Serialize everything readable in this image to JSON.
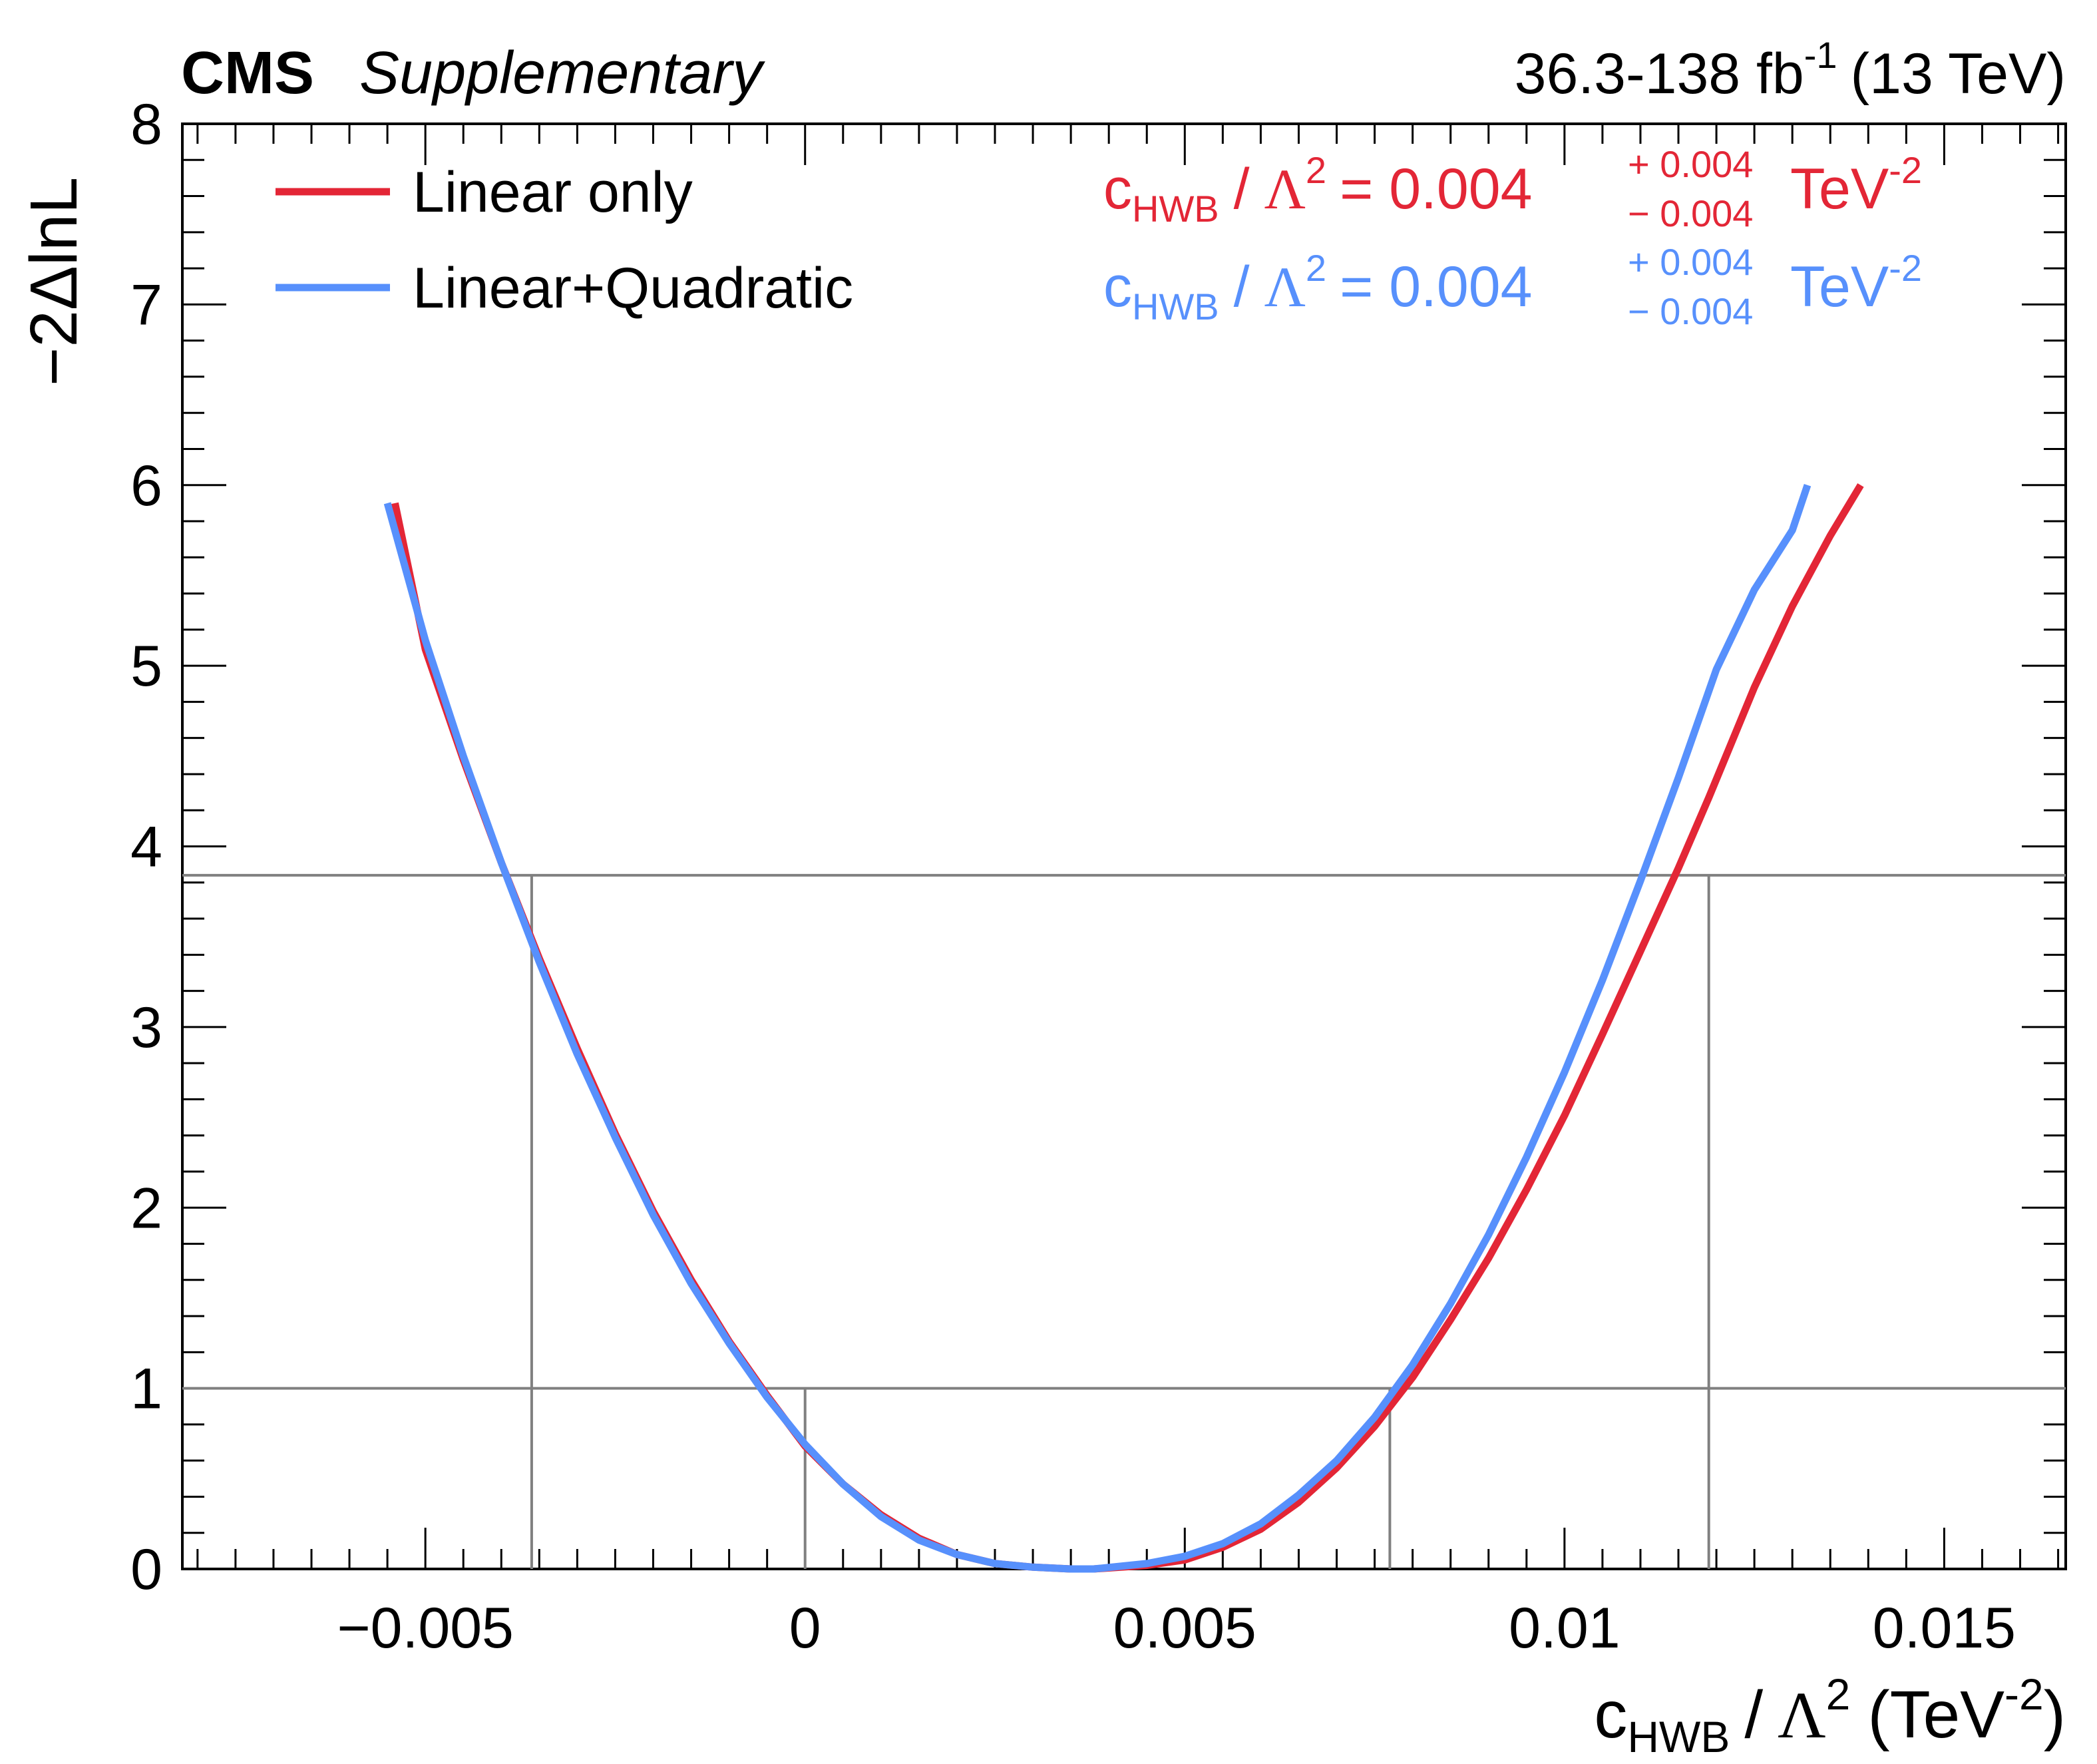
{
  "header": {
    "experiment": "CMS",
    "status": "Supplementary",
    "lumi_text": "36.3-138 fb",
    "lumi_exp": "-1",
    "energy_text": "(13 TeV)"
  },
  "colors": {
    "linear": "#e32636",
    "quadratic": "#5790fc",
    "reference_lines": "#808080"
  },
  "chart_data": {
    "type": "line",
    "xlabel": {
      "c": "c",
      "sub": "HWB",
      "slash": "/",
      "lambda": "Λ",
      "exp": "2",
      "unit_open": "(TeV",
      "unit_exp": "-2",
      "unit_close": ")"
    },
    "ylabel": "−2ΔlnL",
    "xlim": [
      -0.0082,
      0.0166
    ],
    "ylim": [
      0,
      8
    ],
    "xticks": [
      -0.005,
      0,
      0.005,
      0.01,
      0.015
    ],
    "xtick_labels": [
      "−0.005",
      "0",
      "0.005",
      "0.01",
      "0.015"
    ],
    "yticks": [
      0,
      1,
      2,
      3,
      4,
      5,
      6,
      7,
      8
    ],
    "ytick_labels": [
      "0",
      "1",
      "2",
      "3",
      "4",
      "5",
      "6",
      "7",
      "8"
    ],
    "grid": false,
    "legend_position": "top-left",
    "series": [
      {
        "name": "Linear only",
        "color": "#e32636",
        "x": [
          -0.0054,
          -0.005,
          -0.0045,
          -0.004,
          -0.0035,
          -0.003,
          -0.0025,
          -0.002,
          -0.0015,
          -0.001,
          -0.0005,
          0,
          0.0005,
          0.001,
          0.0015,
          0.002,
          0.0025,
          0.003,
          0.0035,
          0.0038,
          0.0045,
          0.005,
          0.0055,
          0.006,
          0.0065,
          0.007,
          0.0075,
          0.008,
          0.0085,
          0.009,
          0.0095,
          0.01,
          0.0105,
          0.011,
          0.0115,
          0.0119,
          0.0125,
          0.013,
          0.0135,
          0.0139
        ],
        "y": [
          5.9,
          5.09,
          4.48,
          3.91,
          3.38,
          2.88,
          2.41,
          1.98,
          1.6,
          1.26,
          0.96,
          0.68,
          0.47,
          0.3,
          0.17,
          0.08,
          0.03,
          0.01,
          0.0,
          0.0,
          0.02,
          0.05,
          0.12,
          0.22,
          0.37,
          0.56,
          0.79,
          1.06,
          1.38,
          1.72,
          2.1,
          2.51,
          2.96,
          3.42,
          3.88,
          4.27,
          4.88,
          5.33,
          5.72,
          6.0
        ]
      },
      {
        "name": "Linear+Quadratic",
        "color": "#5790fc",
        "x": [
          -0.0055,
          -0.005,
          -0.0045,
          -0.004,
          -0.0035,
          -0.003,
          -0.0025,
          -0.002,
          -0.0015,
          -0.001,
          -0.0005,
          0,
          0.0005,
          0.001,
          0.0015,
          0.002,
          0.0025,
          0.003,
          0.0035,
          0.0038,
          0.0045,
          0.005,
          0.0055,
          0.006,
          0.0065,
          0.007,
          0.0075,
          0.008,
          0.0085,
          0.009,
          0.0095,
          0.01,
          0.0105,
          0.011,
          0.0115,
          0.012,
          0.0125,
          0.013,
          0.0132
        ],
        "y": [
          5.9,
          5.14,
          4.5,
          3.91,
          3.36,
          2.85,
          2.39,
          1.96,
          1.58,
          1.25,
          0.95,
          0.69,
          0.47,
          0.29,
          0.16,
          0.08,
          0.03,
          0.01,
          0.0,
          0.0,
          0.03,
          0.07,
          0.14,
          0.25,
          0.41,
          0.6,
          0.84,
          1.13,
          1.47,
          1.85,
          2.28,
          2.75,
          3.26,
          3.81,
          4.38,
          4.98,
          5.42,
          5.75,
          6.0
        ]
      }
    ],
    "reference_lines": {
      "horizontal_y": [
        1,
        3.84
      ],
      "vertical": [
        {
          "x": -0.0036,
          "y_top": 3.84
        },
        {
          "x": 0.0,
          "y_top": 1
        },
        {
          "x": 0.0077,
          "y_top": 1
        },
        {
          "x": 0.0119,
          "y_top": 3.84
        }
      ]
    },
    "annotations": [
      {
        "series": "Linear only",
        "c": "c",
        "sub": "HWB",
        "slash": "/",
        "lambda": "Λ",
        "exp": "2",
        "eq": "= 0.004",
        "up": "+ 0.004",
        "down": "− 0.004",
        "unit": "TeV",
        "unit_exp": "-2"
      },
      {
        "series": "Linear+Quadratic",
        "c": "c",
        "sub": "HWB",
        "slash": "/",
        "lambda": "Λ",
        "exp": "2",
        "eq": "= 0.004",
        "up": "+ 0.004",
        "down": "− 0.004",
        "unit": "TeV",
        "unit_exp": "-2"
      }
    ]
  }
}
